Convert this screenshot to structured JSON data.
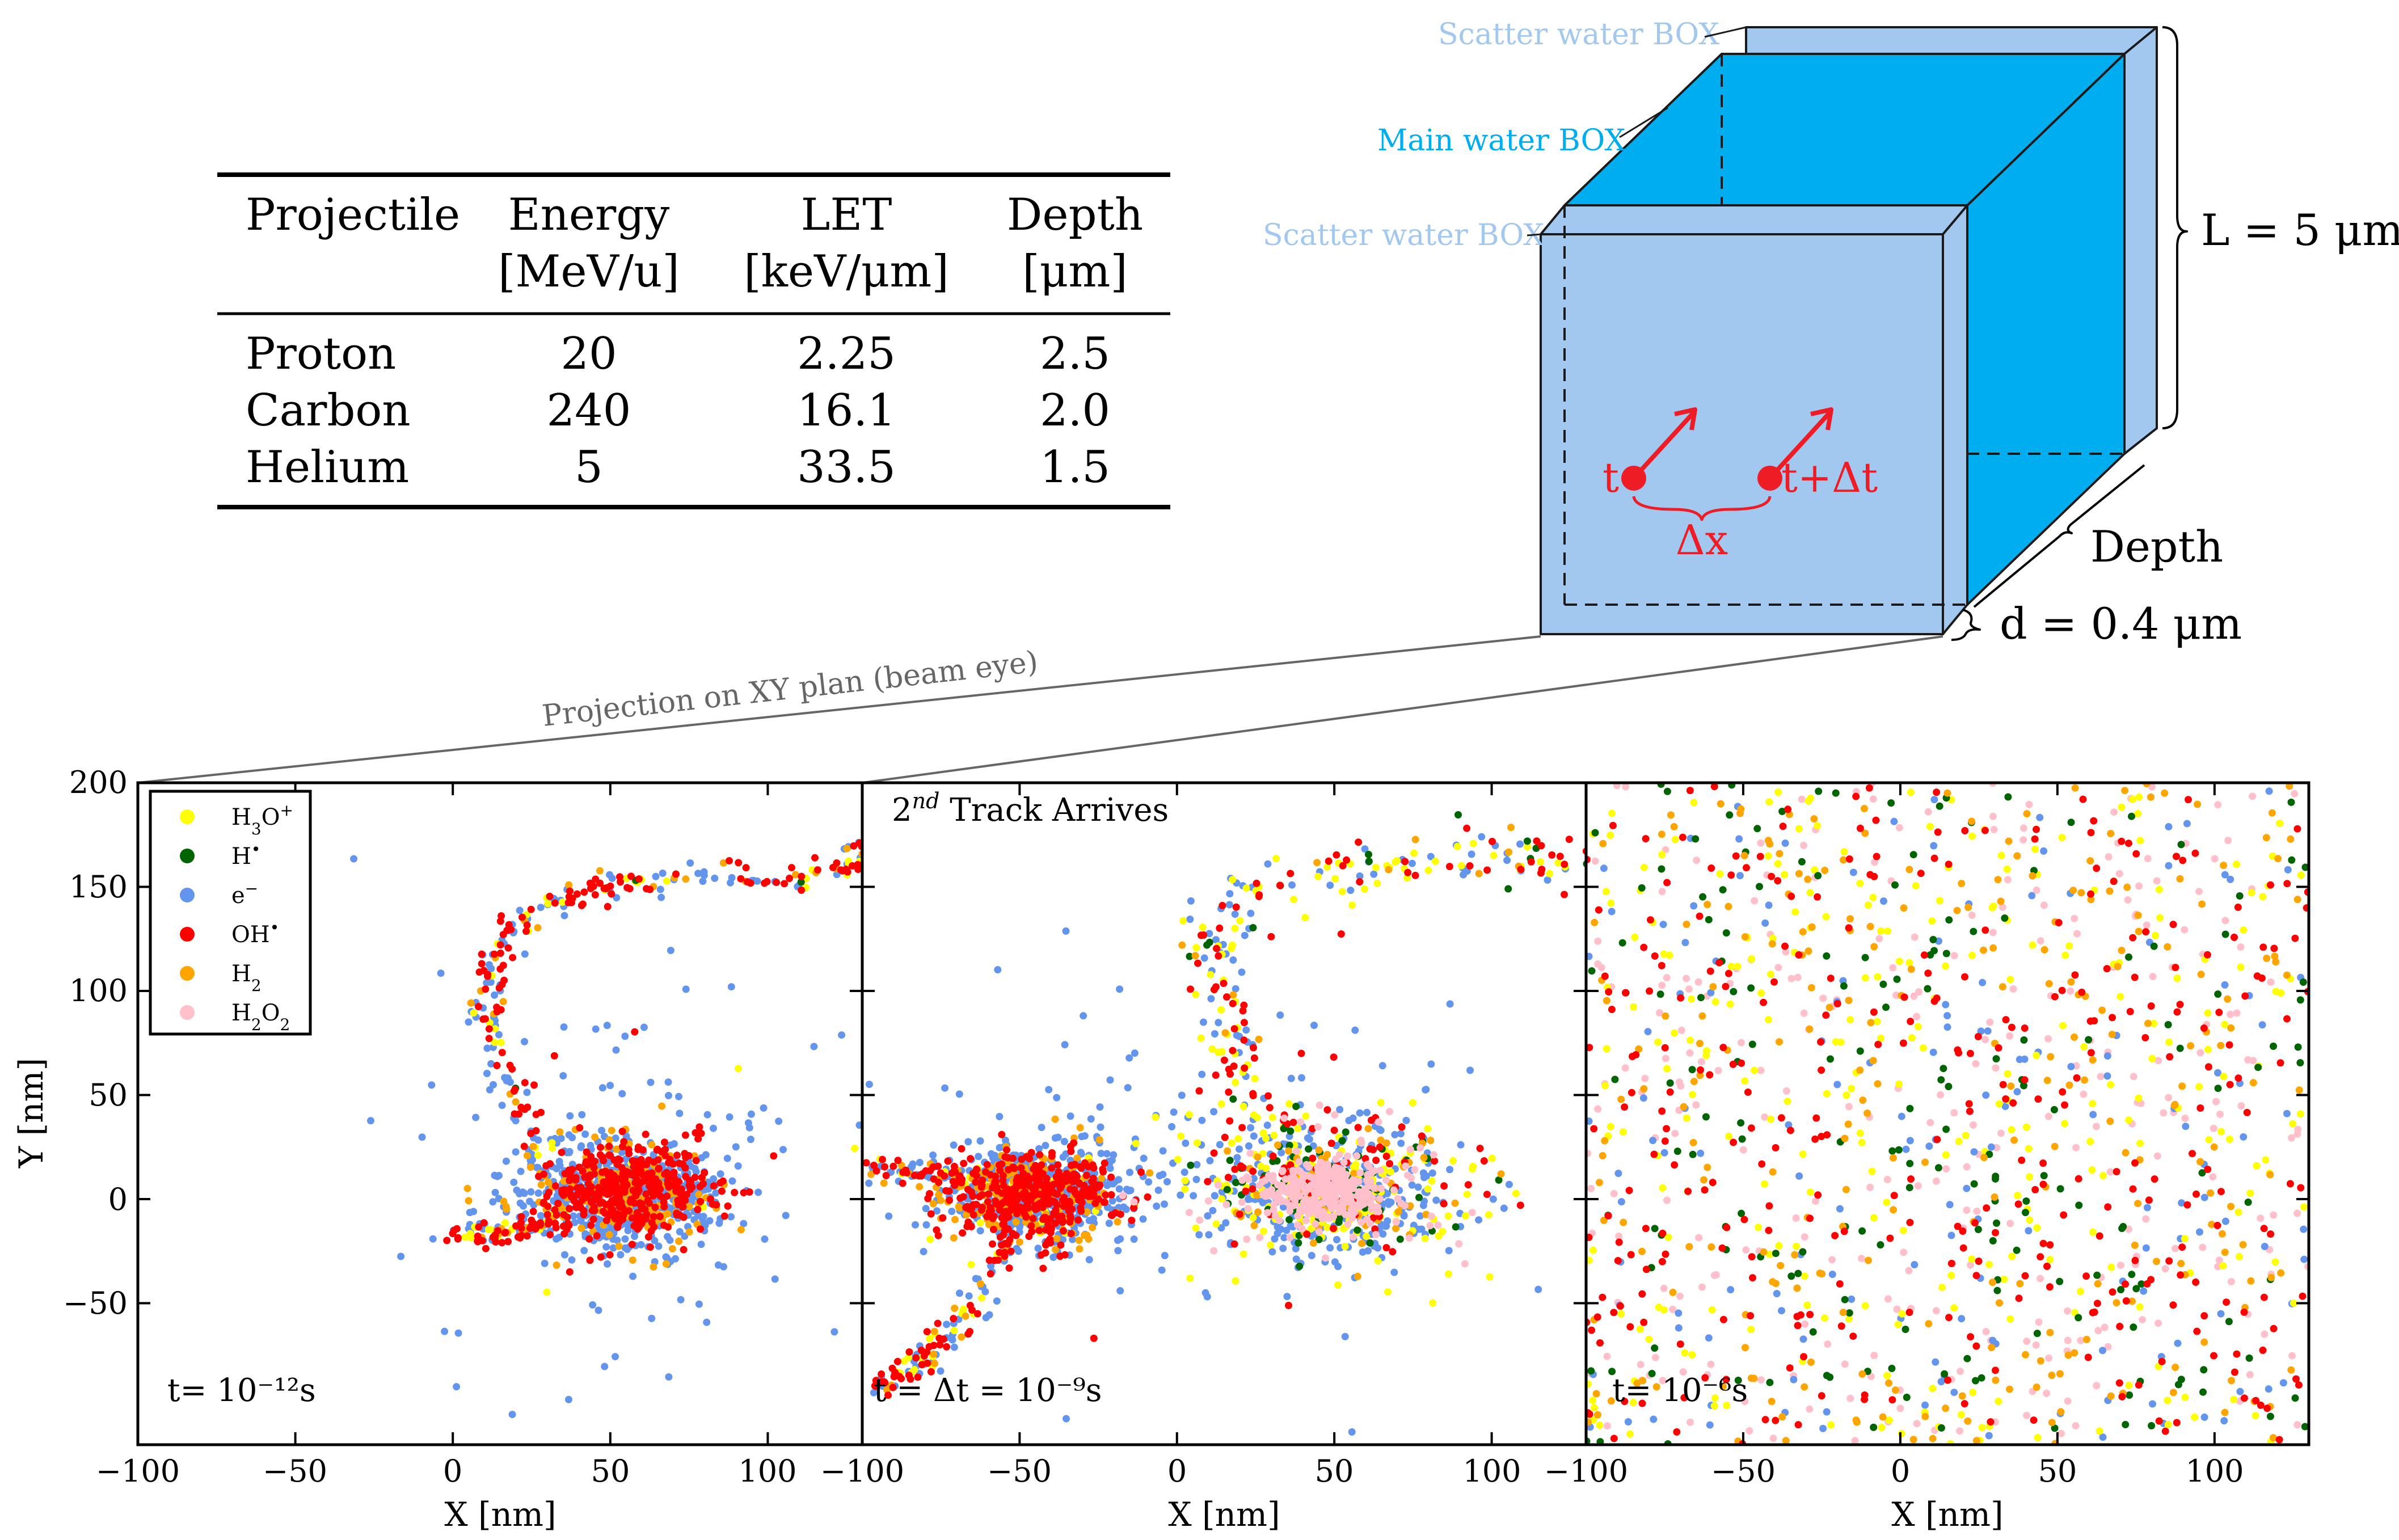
{
  "chart_data": {
    "type": "scatter",
    "table": {
      "headers": [
        [
          "Projectile",
          ""
        ],
        [
          "Energy",
          "[MeV/u]"
        ],
        [
          "LET",
          "[keV/μm]"
        ],
        [
          "Depth",
          "[μm]"
        ]
      ],
      "rows": [
        [
          "Proton",
          "20",
          "2.25",
          "2.5"
        ],
        [
          "Carbon",
          "240",
          "16.1",
          "2.0"
        ],
        [
          "Helium",
          "5",
          "33.5",
          "1.5"
        ]
      ]
    },
    "box_diagram": {
      "labels": {
        "scatter_back": "Scatter water BOX",
        "main": "Main water BOX",
        "scatter_front": "Scatter water BOX",
        "length": "L = 5 μm",
        "depth": "Depth",
        "thickness": "d = 0.4 μm",
        "t": "t",
        "t_dt": "t+Δt",
        "dx": "Δx"
      },
      "colors": {
        "scatter": "#a3c8f0",
        "main": "#00adee",
        "track": "#ee1c24"
      }
    },
    "projection_label": "Projection on XY plan (beam eye)",
    "ylabel": "Y [nm]",
    "legend": [
      {
        "label": "H3O+",
        "color": "#ffff00"
      },
      {
        "label": "H•",
        "color": "#006400"
      },
      {
        "label": "e−",
        "color": "#6495ed"
      },
      {
        "label": "OH•",
        "color": "#ff0000"
      },
      {
        "label": "H2",
        "color": "#ffa500"
      },
      {
        "label": "H2O2",
        "color": "#ffc0cb"
      }
    ],
    "panels": [
      {
        "xlabel": "X [nm]",
        "xlim": [
          -100,
          130
        ],
        "ylim": [
          -118,
          200
        ],
        "xticks": [
          "−100",
          "−50",
          "0",
          "50",
          "100"
        ],
        "time_label": "t= 10⁻¹²s",
        "annotation": ""
      },
      {
        "xlabel": "X [nm]",
        "xlim": [
          -100,
          130
        ],
        "ylim": [
          -118,
          200
        ],
        "xticks": [
          "−100",
          "−50",
          "0",
          "50",
          "100"
        ],
        "time_label": "t = Δt = 10⁻⁹s",
        "annotation": "2nd Track Arrives"
      },
      {
        "xlabel": "X [nm]",
        "xlim": [
          -100,
          130
        ],
        "ylim": [
          -118,
          200
        ],
        "xticks": [
          "−100",
          "−50",
          "0",
          "50",
          "100"
        ],
        "time_label": "t= 10⁻⁶s",
        "annotation": ""
      }
    ],
    "yticks": [
      "200",
      "150",
      "100",
      "50",
      "0",
      "−50"
    ],
    "clusters": [
      {
        "panel": 0,
        "type": "path",
        "pts": [
          [
            3,
            -15
          ],
          [
            10,
            -18
          ],
          [
            22,
            -15
          ],
          [
            36,
            -10
          ]
        ],
        "n": 80,
        "spread": 2.5,
        "weights": [
          0.2,
          0,
          0.25,
          0.45,
          0.1,
          0
        ]
      },
      {
        "panel": 0,
        "type": "path",
        "pts": [
          [
            28,
            20
          ],
          [
            20,
            50
          ],
          [
            14,
            75
          ],
          [
            10,
            105
          ],
          [
            18,
            128
          ],
          [
            32,
            143
          ],
          [
            55,
            152
          ],
          [
            80,
            155
          ],
          [
            105,
            153
          ],
          [
            125,
            160
          ],
          [
            135,
            172
          ]
        ],
        "n": 260,
        "spread": 3,
        "weights": [
          0.1,
          0.02,
          0.3,
          0.5,
          0.08,
          0
        ]
      },
      {
        "panel": 0,
        "type": "blob",
        "cx": 52,
        "cy": 3,
        "sx": 17,
        "sy": 13,
        "n": 650,
        "weights": [
          0.02,
          0,
          0.78,
          0.05,
          0.15,
          0
        ]
      },
      {
        "panel": 0,
        "type": "blob",
        "cx": 55,
        "cy": 4,
        "sx": 13,
        "sy": 11,
        "n": 420,
        "weights": [
          0,
          0,
          0.05,
          0.8,
          0.15,
          0
        ]
      },
      {
        "panel": 0,
        "type": "blob",
        "cx": 50,
        "cy": 20,
        "sx": 40,
        "sy": 50,
        "n": 110,
        "weights": [
          0.02,
          0,
          0.9,
          0.08,
          0,
          0
        ]
      },
      {
        "panel": 1,
        "type": "blob",
        "cx": -45,
        "cy": 2,
        "sx": 15,
        "sy": 12,
        "n": 600,
        "weights": [
          0.02,
          0,
          0.75,
          0.05,
          0.18,
          0
        ]
      },
      {
        "panel": 1,
        "type": "blob",
        "cx": -45,
        "cy": 1,
        "sx": 12,
        "sy": 10,
        "n": 420,
        "weights": [
          0,
          0,
          0.05,
          0.8,
          0.15,
          0
        ]
      },
      {
        "panel": 1,
        "type": "path",
        "pts": [
          [
            -98,
            15
          ],
          [
            -80,
            13
          ],
          [
            -62,
            8
          ]
        ],
        "n": 90,
        "spread": 3,
        "weights": [
          0.1,
          0,
          0.4,
          0.45,
          0.05,
          0
        ]
      },
      {
        "panel": 1,
        "type": "path",
        "pts": [
          [
            -55,
            -20
          ],
          [
            -65,
            -55
          ],
          [
            -78,
            -75
          ],
          [
            -95,
            -90
          ]
        ],
        "n": 120,
        "spread": 3,
        "weights": [
          0.15,
          0,
          0.3,
          0.45,
          0.1,
          0
        ]
      },
      {
        "panel": 1,
        "type": "path",
        "pts": [
          [
            10,
            115
          ],
          [
            20,
            150
          ],
          [
            50,
            158
          ],
          [
            80,
            165
          ],
          [
            110,
            165
          ],
          [
            130,
            163
          ]
        ],
        "n": 150,
        "spread": 6,
        "weights": [
          0.3,
          0.05,
          0.3,
          0.3,
          0.05,
          0
        ]
      },
      {
        "panel": 1,
        "type": "path",
        "pts": [
          [
            10,
            120
          ],
          [
            18,
            80
          ],
          [
            28,
            45
          ],
          [
            35,
            25
          ]
        ],
        "n": 90,
        "spread": 5,
        "weights": [
          0.3,
          0.05,
          0.25,
          0.35,
          0.05,
          0
        ]
      },
      {
        "panel": 1,
        "type": "blob",
        "cx": 48,
        "cy": 5,
        "sx": 22,
        "sy": 17,
        "n": 720,
        "weights": [
          0.26,
          0.1,
          0.36,
          0.1,
          0.08,
          0.1
        ]
      },
      {
        "panel": 1,
        "type": "blob",
        "cx": 48,
        "cy": 3,
        "sx": 9,
        "sy": 7,
        "n": 320,
        "weights": [
          0,
          0,
          0,
          0,
          0.05,
          0.95
        ]
      },
      {
        "panel": 1,
        "type": "blob",
        "cx": 10,
        "cy": 20,
        "sx": 45,
        "sy": 45,
        "n": 120,
        "weights": [
          0.1,
          0,
          0.85,
          0.05,
          0,
          0
        ]
      },
      {
        "panel": 2,
        "type": "uniform",
        "n": 1500,
        "weights": [
          0.2,
          0.12,
          0.1,
          0.2,
          0.18,
          0.2
        ]
      }
    ]
  }
}
